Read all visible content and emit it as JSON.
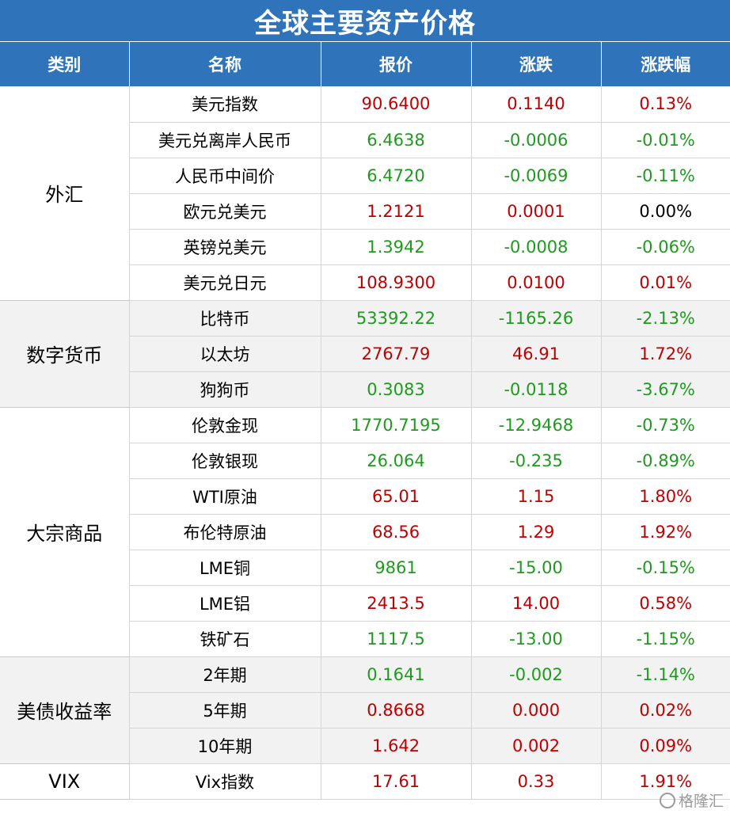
{
  "title": "全球主要资产价格",
  "headers": [
    "类别",
    "名称",
    "报价",
    "涨跌",
    "涨跌幅"
  ],
  "groups": [
    {
      "category": "外汇",
      "shaded": false,
      "rows": [
        {
          "name": "美元指数",
          "price": "90.6400",
          "change": "0.1140",
          "pct": "0.13%",
          "dir": "up",
          "pct_dir": "up"
        },
        {
          "name": "美元兑离岸人民币",
          "price": "6.4638",
          "change": "-0.0006",
          "pct": "-0.01%",
          "dir": "down",
          "pct_dir": "down"
        },
        {
          "name": "人民币中间价",
          "price": "6.4720",
          "change": "-0.0069",
          "pct": "-0.11%",
          "dir": "down",
          "pct_dir": "down"
        },
        {
          "name": "欧元兑美元",
          "price": "1.2121",
          "change": "0.0001",
          "pct": "0.00%",
          "dir": "up",
          "pct_dir": "flat"
        },
        {
          "name": "英镑兑美元",
          "price": "1.3942",
          "change": "-0.0008",
          "pct": "-0.06%",
          "dir": "down",
          "pct_dir": "down"
        },
        {
          "name": "美元兑日元",
          "price": "108.9300",
          "change": "0.0100",
          "pct": "0.01%",
          "dir": "up",
          "pct_dir": "up"
        }
      ]
    },
    {
      "category": "数字货币",
      "shaded": true,
      "rows": [
        {
          "name": "比特币",
          "price": "53392.22",
          "change": "-1165.26",
          "pct": "-2.13%",
          "dir": "down",
          "pct_dir": "down"
        },
        {
          "name": "以太坊",
          "price": "2767.79",
          "change": "46.91",
          "pct": "1.72%",
          "dir": "up",
          "pct_dir": "up"
        },
        {
          "name": "狗狗币",
          "price": "0.3083",
          "change": "-0.0118",
          "pct": "-3.67%",
          "dir": "down",
          "pct_dir": "down"
        }
      ]
    },
    {
      "category": "大宗商品",
      "shaded": false,
      "rows": [
        {
          "name": "伦敦金现",
          "price": "1770.7195",
          "change": "-12.9468",
          "pct": "-0.73%",
          "dir": "down",
          "pct_dir": "down"
        },
        {
          "name": "伦敦银现",
          "price": "26.064",
          "change": "-0.235",
          "pct": "-0.89%",
          "dir": "down",
          "pct_dir": "down"
        },
        {
          "name": "WTI原油",
          "price": "65.01",
          "change": "1.15",
          "pct": "1.80%",
          "dir": "up",
          "pct_dir": "up"
        },
        {
          "name": "布伦特原油",
          "price": "68.56",
          "change": "1.29",
          "pct": "1.92%",
          "dir": "up",
          "pct_dir": "up"
        },
        {
          "name": "LME铜",
          "price": "9861",
          "change": "-15.00",
          "pct": "-0.15%",
          "dir": "down",
          "pct_dir": "down"
        },
        {
          "name": "LME铝",
          "price": "2413.5",
          "change": "14.00",
          "pct": "0.58%",
          "dir": "up",
          "pct_dir": "up"
        },
        {
          "name": "铁矿石",
          "price": "1117.5",
          "change": "-13.00",
          "pct": "-1.15%",
          "dir": "down",
          "pct_dir": "down"
        }
      ]
    },
    {
      "category": "美债收益率",
      "shaded": true,
      "rows": [
        {
          "name": "2年期",
          "price": "0.1641",
          "change": "-0.002",
          "pct": "-1.14%",
          "dir": "down",
          "pct_dir": "down"
        },
        {
          "name": "5年期",
          "price": "0.8668",
          "change": "0.000",
          "pct": "0.02%",
          "dir": "up",
          "pct_dir": "up"
        },
        {
          "name": "10年期",
          "price": "1.642",
          "change": "0.002",
          "pct": "0.09%",
          "dir": "up",
          "pct_dir": "up"
        }
      ]
    },
    {
      "category": "VIX",
      "shaded": false,
      "rows": [
        {
          "name": "Vix指数",
          "price": "17.61",
          "change": "0.33",
          "pct": "1.91%",
          "dir": "up",
          "pct_dir": "up"
        }
      ]
    }
  ],
  "watermark": "格隆汇",
  "colors": {
    "header_bg": "#2f74bb",
    "up": "#c00000",
    "down": "#1e9b1e",
    "shade": "#f2f2f2"
  }
}
